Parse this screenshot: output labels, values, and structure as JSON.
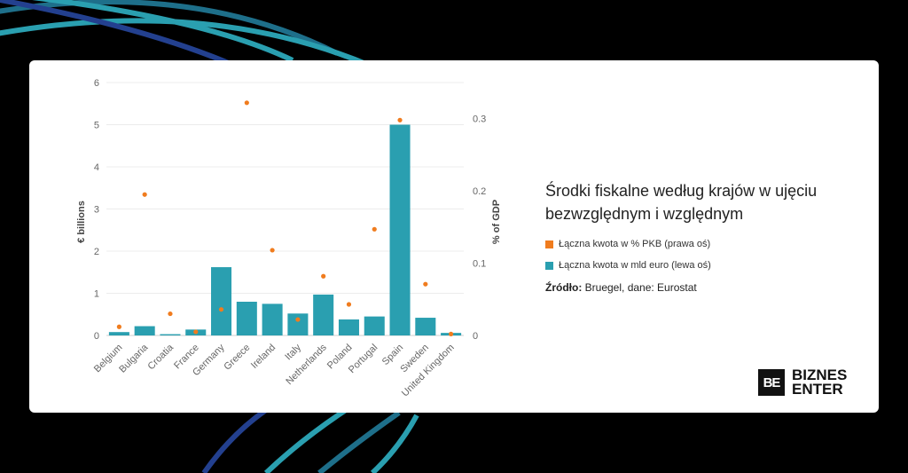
{
  "chart_data": {
    "type": "bar",
    "categories": [
      "Belgium",
      "Bulgaria",
      "Croatia",
      "France",
      "Germany",
      "Greece",
      "Ireland",
      "Italy",
      "Netherlands",
      "Poland",
      "Portugal",
      "Spain",
      "Sweden",
      "United Kingdom"
    ],
    "series": [
      {
        "name": "Łączna kwota w mld euro (lewa oś)",
        "type": "bar",
        "axis": "left",
        "color": "#2a9fb0",
        "values": [
          0.08,
          0.22,
          0.03,
          0.14,
          1.62,
          0.8,
          0.75,
          0.52,
          0.97,
          0.38,
          0.45,
          5.0,
          0.42,
          0.06
        ]
      },
      {
        "name": "Łączna kwota w % PKB (prawa oś)",
        "type": "scatter",
        "axis": "right",
        "color": "#f07c1e",
        "values": [
          0.012,
          0.195,
          0.03,
          0.005,
          0.036,
          0.322,
          0.118,
          0.022,
          0.082,
          0.043,
          0.147,
          0.298,
          0.071,
          0.002
        ]
      }
    ],
    "ylabel": "€ billions",
    "y2label": "% of GDP",
    "ylim": [
      0,
      6
    ],
    "y2lim": [
      0,
      0.35
    ],
    "yticks": [
      0,
      1,
      2,
      3,
      4,
      5,
      6
    ],
    "y2ticks": [
      0,
      0.1,
      0.2,
      0.3
    ],
    "grid": true
  },
  "side": {
    "title_line1": "Środki fiskalne według krajów w ujęciu",
    "title_line2": "bezwzględnym i względnym",
    "legend": [
      {
        "label": "Łączna kwota w % PKB (prawa oś)",
        "color": "#f07c1e"
      },
      {
        "label": "Łączna kwota w mld euro (lewa oś)",
        "color": "#2a9fb0"
      }
    ],
    "source_label": "Źródło:",
    "source_text": " Bruegel, dane: Eurostat"
  },
  "logo": {
    "mark": "BE",
    "line1": "BIZNES",
    "line2": "ENTER"
  }
}
